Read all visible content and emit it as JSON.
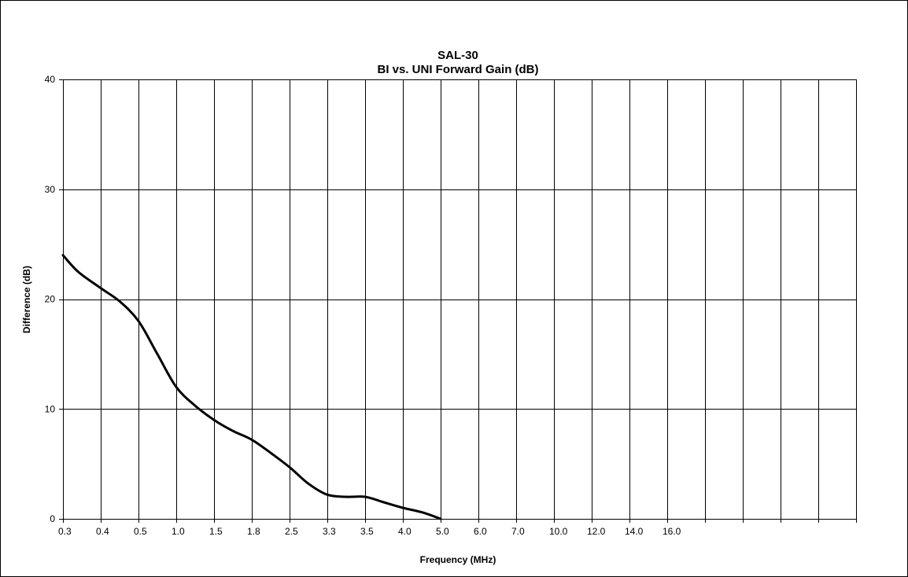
{
  "chart_data": {
    "type": "line",
    "title": "SAL-30",
    "subtitle": "BI vs. UNI Forward Gain (dB)",
    "xlabel": "Frequency (MHz)",
    "ylabel": "Difference (dB)",
    "ylim": [
      0,
      40
    ],
    "yticks": [
      0,
      10,
      20,
      30,
      40
    ],
    "grid": true,
    "categories": [
      "0.3",
      "0.4",
      "0.5",
      "1.0",
      "1.5",
      "1.8",
      "2.5",
      "3.3",
      "3.5",
      "4.0",
      "5.0",
      "6.0",
      "7.0",
      "10.0",
      "12.0",
      "14.0",
      "16.0",
      "",
      "",
      "",
      ""
    ],
    "series": [
      {
        "x": [
          0,
          0.4,
          1,
          1.5,
          2,
          2.5,
          3,
          3.5,
          4,
          4.5,
          5,
          5.5,
          6,
          6.5,
          7,
          7.5,
          8,
          8.5,
          9,
          9.5,
          10
        ],
        "values": [
          24,
          22.5,
          21,
          19.8,
          18,
          15,
          12,
          10.3,
          9,
          8,
          7.2,
          6,
          4.7,
          3.2,
          2.2,
          2,
          2,
          1.5,
          1,
          0.6,
          0
        ]
      }
    ]
  }
}
